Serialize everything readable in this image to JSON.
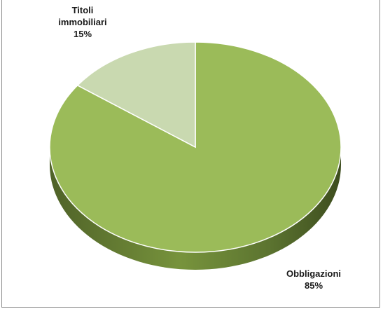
{
  "chart_data": {
    "type": "pie",
    "slices": [
      {
        "label": "Obbligazioni",
        "value": 85,
        "value_label": "85%",
        "color": "#9bbb59"
      },
      {
        "label": "Titoli immobiliari",
        "label_lines": [
          "Titoli",
          "immobiliari"
        ],
        "value": 15,
        "value_label": "15%",
        "color": "#c9d9b0"
      }
    ],
    "style": "3d",
    "start": "top",
    "direction": "clockwise"
  }
}
